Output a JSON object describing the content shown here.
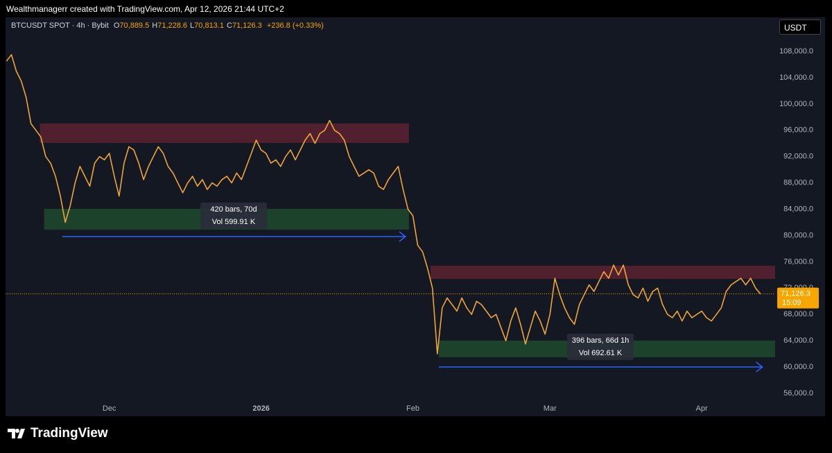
{
  "header": {
    "attribution": "Wealthmanagerr created with TradingView.com, Apr 12, 2026 21:44 UTC+2",
    "symbol": "BTCUSDT SPOT · 4h · Bybit",
    "ohlc": [
      {
        "key": "O",
        "value": "70,889.5"
      },
      {
        "key": "H",
        "value": "71,228.6"
      },
      {
        "key": "L",
        "value": "70,813.1"
      },
      {
        "key": "C",
        "value": "71,126.3"
      }
    ],
    "change": "+236.8 (+0.33%)",
    "currency": "USDT"
  },
  "footer": {
    "brand": "TradingView"
  },
  "chart_data": {
    "type": "line",
    "color": "#f0a53a",
    "x": [
      -21,
      -20,
      -19,
      -18,
      -17,
      -16,
      -15,
      -14,
      -13,
      -12,
      -11,
      -10,
      -9,
      -8,
      -7,
      -6,
      -5,
      -4,
      -3,
      -2,
      -1,
      0,
      1,
      2,
      3,
      4,
      5,
      6,
      7,
      8,
      9,
      10,
      11,
      12,
      13,
      14,
      15,
      16,
      17,
      18,
      19,
      20,
      21,
      22,
      23,
      24,
      25,
      26,
      27,
      28,
      29,
      30,
      31,
      32,
      33,
      34,
      35,
      36,
      37,
      38,
      39,
      40,
      41,
      42,
      43,
      44,
      45,
      46,
      47,
      48,
      49,
      50,
      51,
      52,
      53,
      54,
      55,
      56,
      57,
      58,
      59,
      60,
      61,
      62,
      63,
      64,
      65,
      66,
      67,
      68,
      69,
      70,
      71,
      72,
      73,
      74,
      75,
      76,
      77,
      78,
      79,
      80,
      81,
      82,
      83,
      84,
      85,
      86,
      87,
      88,
      89,
      90,
      91,
      92,
      93,
      94,
      95,
      96,
      97,
      98,
      99,
      100,
      101,
      102,
      103,
      104,
      105,
      106,
      107,
      108,
      109,
      110,
      111,
      112,
      113,
      114,
      115,
      116,
      117,
      118,
      119,
      120,
      121,
      122,
      123,
      124,
      125,
      126,
      127,
      128,
      129,
      130,
      131,
      132,
      133
    ],
    "values": [
      106500,
      107500,
      105000,
      103500,
      101000,
      97000,
      96000,
      95000,
      92000,
      91000,
      89000,
      86000,
      82000,
      84500,
      88000,
      90500,
      89000,
      87500,
      91000,
      92000,
      91500,
      92500,
      89000,
      86000,
      91000,
      93500,
      93000,
      91000,
      88500,
      90500,
      92000,
      93500,
      92500,
      90500,
      89500,
      88000,
      86500,
      88000,
      89000,
      87500,
      88500,
      87000,
      88000,
      87500,
      88500,
      89000,
      88000,
      89500,
      88500,
      90500,
      92500,
      94500,
      93000,
      92500,
      91000,
      91500,
      90500,
      92000,
      93000,
      91500,
      93000,
      94500,
      95500,
      94000,
      95500,
      96000,
      97500,
      96000,
      95500,
      94500,
      92000,
      90500,
      89000,
      89500,
      90000,
      89500,
      87500,
      87000,
      88500,
      89500,
      90500,
      87000,
      84000,
      83000,
      78500,
      77500,
      75000,
      72000,
      62000,
      69000,
      70500,
      69500,
      68500,
      70500,
      69000,
      68000,
      70000,
      69500,
      68500,
      67500,
      68000,
      66000,
      64000,
      67000,
      69000,
      66500,
      63500,
      66000,
      68500,
      67000,
      65000,
      68000,
      73500,
      71000,
      69000,
      67500,
      66500,
      69500,
      71000,
      72500,
      71500,
      73000,
      74500,
      73500,
      75500,
      74000,
      75500,
      72500,
      71000,
      70500,
      72000,
      70000,
      71500,
      72000,
      69500,
      68000,
      67500,
      68500,
      67000,
      68500,
      67500,
      68000,
      68500,
      67500,
      67000,
      68000,
      69000,
      71500,
      72500,
      73000,
      73500,
      72500,
      73500,
      72000,
      71126.3
    ],
    "xlim": [
      -21.2,
      136
    ],
    "ylim": [
      54840,
      113170
    ],
    "xticks": [
      {
        "value": 0,
        "label": "Dec"
      },
      {
        "value": 31,
        "label": "2026"
      },
      {
        "value": 62,
        "label": "Feb"
      },
      {
        "value": 90,
        "label": "Mar"
      },
      {
        "value": 121,
        "label": "Apr"
      }
    ],
    "yticks": [
      {
        "value": 56000,
        "label": "56,000.0"
      },
      {
        "value": 60000,
        "label": "60,000.0"
      },
      {
        "value": 64000,
        "label": "64,000.0"
      },
      {
        "value": 68000,
        "label": "68,000.0"
      },
      {
        "value": 72000,
        "label": "72,000.0"
      },
      {
        "value": 76000,
        "label": "76,000.0"
      },
      {
        "value": 80000,
        "label": "80,000.0"
      },
      {
        "value": 84000,
        "label": "84,000.0"
      },
      {
        "value": 88000,
        "label": "88,000.0"
      },
      {
        "value": 92000,
        "label": "92,000.0"
      },
      {
        "value": 96000,
        "label": "96,000.0"
      },
      {
        "value": 100000,
        "label": "100,000.0"
      },
      {
        "value": 104000,
        "label": "104,000.0"
      },
      {
        "value": 108000,
        "label": "108,000.0"
      }
    ],
    "grid": false,
    "last_price": {
      "value": 71126.3,
      "label": "71,126.3",
      "countdown": "15:09",
      "color": "#f7a600"
    },
    "zones": [
      {
        "x": [
          -14.2,
          61.2
        ],
        "y": [
          94080,
          97035
        ],
        "color": "#5c2230"
      },
      {
        "x": [
          -13.3,
          61.2
        ],
        "y": [
          80900,
          84060
        ],
        "color": "#1f4a2d"
      },
      {
        "x": [
          65.6,
          136
        ],
        "y": [
          73400,
          75410
        ],
        "color": "#5c2230"
      },
      {
        "x": [
          67.3,
          136
        ],
        "y": [
          61485,
          64017
        ],
        "color": "#1f4a2d"
      }
    ],
    "measures": [
      {
        "x": [
          -9.6,
          60.5
        ],
        "y": 79840,
        "bars": "420 bars, 70d",
        "vol": "Vol 599.91 K",
        "color": "#2962ff"
      },
      {
        "x": [
          67.3,
          133.4
        ],
        "y": 60010,
        "bars": "396 bars, 66d 1h",
        "vol": "Vol 692.61 K",
        "color": "#2962ff"
      }
    ]
  }
}
